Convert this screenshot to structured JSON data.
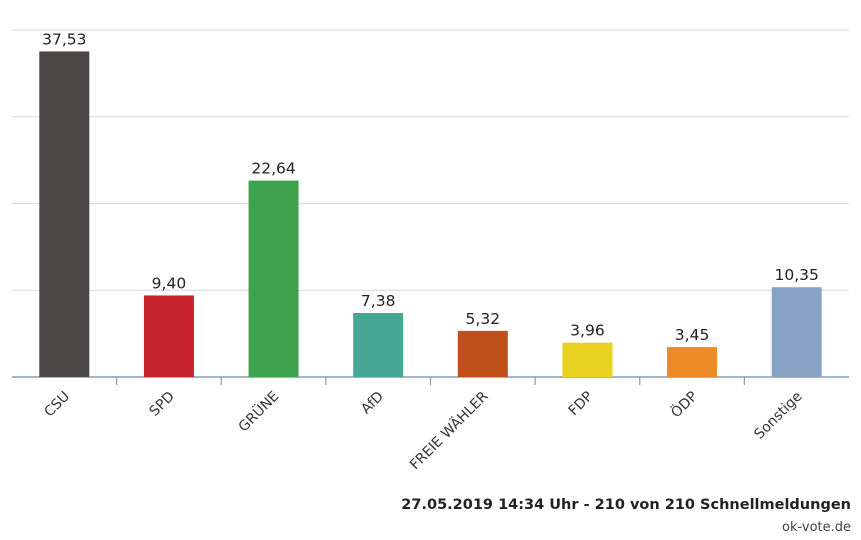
{
  "chart_data": {
    "type": "bar",
    "title": "",
    "xlabel": "",
    "ylabel": "",
    "categories": [
      "CSU",
      "SPD",
      "GRÜNE",
      "AfD",
      "FREIE WÄHLER",
      "FDP",
      "ÖDP",
      "Sonstige"
    ],
    "values": [
      37.53,
      9.4,
      22.64,
      7.38,
      5.32,
      3.96,
      3.45,
      10.35
    ],
    "value_labels": [
      "37,53",
      "9,40",
      "22,64",
      "7,38",
      "5,32",
      "3,96",
      "3,45",
      "10,35"
    ],
    "colors": [
      "#4a4746",
      "#c8242f",
      "#3fa34d",
      "#45a794",
      "#c0501a",
      "#e8d21f",
      "#eb8a26",
      "#86a3c6"
    ],
    "ylim": [
      0,
      40
    ],
    "grid": true,
    "legend": "none"
  },
  "footer": {
    "stand": "27.05.2019 14:34 Uhr - 210 von 210 Schnellmeldungen",
    "source": "ok-vote.de"
  }
}
